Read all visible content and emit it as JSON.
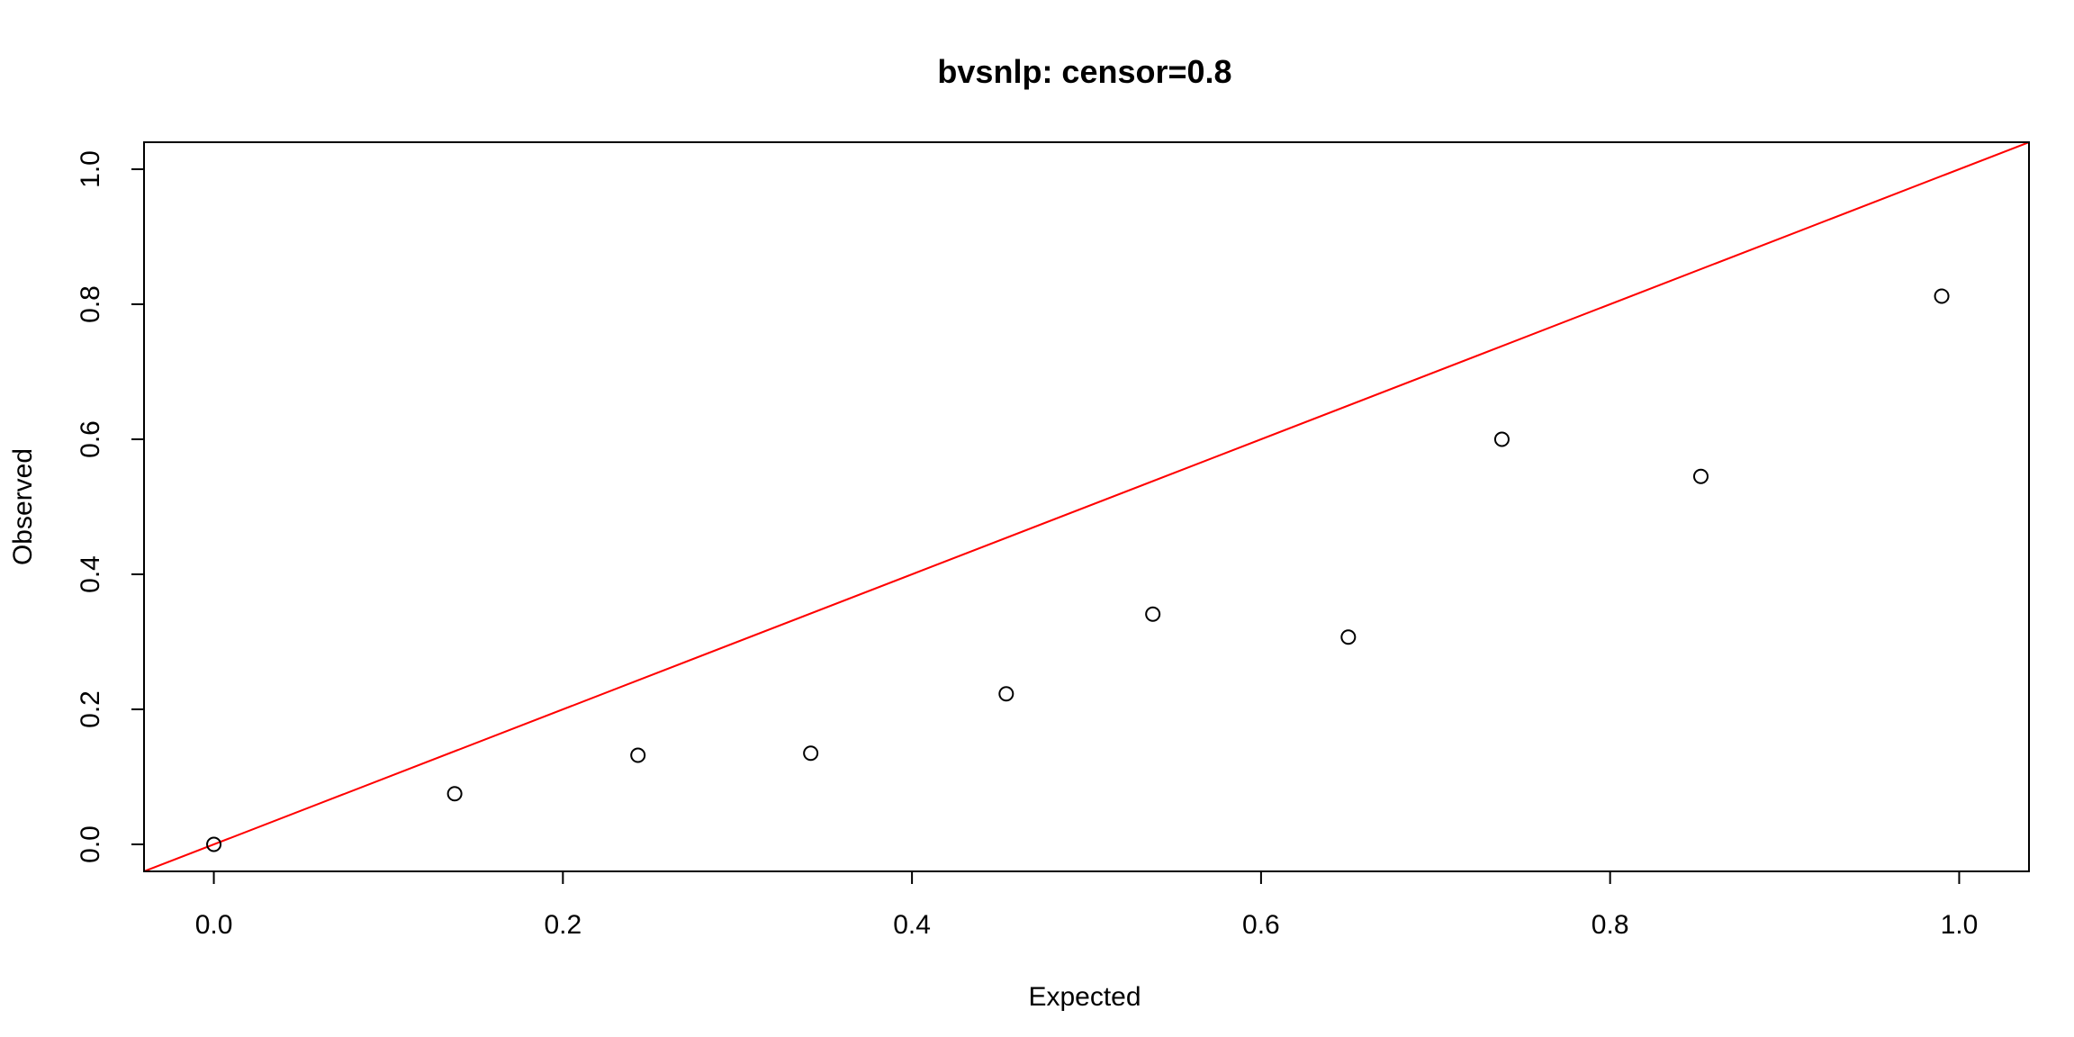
{
  "chart_data": {
    "type": "scatter",
    "title": "bvsnlp: censor=0.8",
    "xlabel": "Expected",
    "ylabel": "Observed",
    "xlim": [
      -0.04,
      1.04
    ],
    "ylim": [
      -0.04,
      1.04
    ],
    "x_ticks": [
      0.0,
      0.2,
      0.4,
      0.6,
      0.8,
      1.0
    ],
    "x_tick_labels": [
      "0.0",
      "0.2",
      "0.4",
      "0.6",
      "0.8",
      "1.0"
    ],
    "y_ticks": [
      0.0,
      0.2,
      0.4,
      0.6,
      0.8,
      1.0
    ],
    "y_tick_labels": [
      "0.0",
      "0.2",
      "0.4",
      "0.6",
      "0.8",
      "1.0"
    ],
    "grid": false,
    "points": [
      {
        "x": 0.0,
        "y": 0.0
      },
      {
        "x": 0.138,
        "y": 0.075
      },
      {
        "x": 0.243,
        "y": 0.132
      },
      {
        "x": 0.342,
        "y": 0.135
      },
      {
        "x": 0.454,
        "y": 0.223
      },
      {
        "x": 0.538,
        "y": 0.341
      },
      {
        "x": 0.65,
        "y": 0.307
      },
      {
        "x": 0.738,
        "y": 0.6
      },
      {
        "x": 0.852,
        "y": 0.545
      },
      {
        "x": 0.99,
        "y": 0.812
      }
    ],
    "reference_line": {
      "intercept": 0,
      "slope": 1,
      "color": "#ff0000"
    },
    "point_color": "#000000"
  }
}
